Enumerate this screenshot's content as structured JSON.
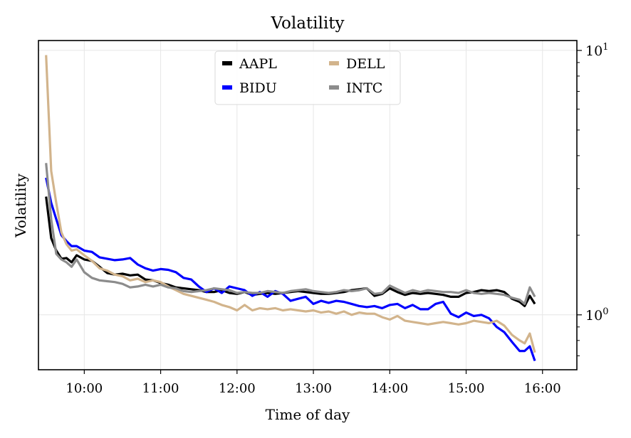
{
  "chart_data": {
    "type": "line",
    "title": "Volatility",
    "xlabel": "Time of day",
    "ylabel": "Volatility",
    "x_ticks": [
      "10:00",
      "11:00",
      "12:00",
      "13:00",
      "14:00",
      "15:00",
      "16:00"
    ],
    "y_ticks": [
      {
        "value": 10,
        "base": "10",
        "exp": "1"
      },
      {
        "value": 1,
        "base": "10",
        "exp": "0"
      }
    ],
    "y_scale": "log",
    "ylim": [
      0.62,
      10.9
    ],
    "xlim": [
      "09:24",
      "16:27"
    ],
    "grid": true,
    "legend_position": "top-center",
    "series": [
      {
        "name": "AAPL",
        "color": "#000000",
        "points": [
          [
            "09:30",
            2.8
          ],
          [
            "09:34",
            1.95
          ],
          [
            "09:38",
            1.75
          ],
          [
            "09:42",
            1.63
          ],
          [
            "09:46",
            1.64
          ],
          [
            "09:50",
            1.58
          ],
          [
            "09:54",
            1.68
          ],
          [
            "10:00",
            1.62
          ],
          [
            "10:06",
            1.6
          ],
          [
            "10:12",
            1.52
          ],
          [
            "10:18",
            1.44
          ],
          [
            "10:24",
            1.42
          ],
          [
            "10:30",
            1.43
          ],
          [
            "10:36",
            1.41
          ],
          [
            "10:42",
            1.42
          ],
          [
            "10:48",
            1.36
          ],
          [
            "10:54",
            1.35
          ],
          [
            "11:00",
            1.32
          ],
          [
            "11:06",
            1.3
          ],
          [
            "11:12",
            1.27
          ],
          [
            "11:18",
            1.26
          ],
          [
            "11:24",
            1.25
          ],
          [
            "11:30",
            1.24
          ],
          [
            "11:36",
            1.22
          ],
          [
            "11:42",
            1.22
          ],
          [
            "11:48",
            1.24
          ],
          [
            "11:54",
            1.21
          ],
          [
            "12:00",
            1.2
          ],
          [
            "12:06",
            1.22
          ],
          [
            "12:12",
            1.19
          ],
          [
            "12:18",
            1.2
          ],
          [
            "12:24",
            1.21
          ],
          [
            "12:30",
            1.2
          ],
          [
            "12:36",
            1.21
          ],
          [
            "12:42",
            1.22
          ],
          [
            "12:48",
            1.23
          ],
          [
            "12:54",
            1.22
          ],
          [
            "13:00",
            1.21
          ],
          [
            "13:06",
            1.2
          ],
          [
            "13:12",
            1.2
          ],
          [
            "13:18",
            1.21
          ],
          [
            "13:24",
            1.22
          ],
          [
            "13:30",
            1.24
          ],
          [
            "13:36",
            1.25
          ],
          [
            "13:42",
            1.26
          ],
          [
            "13:48",
            1.18
          ],
          [
            "13:54",
            1.2
          ],
          [
            "14:00",
            1.26
          ],
          [
            "14:06",
            1.22
          ],
          [
            "14:12",
            1.19
          ],
          [
            "14:18",
            1.21
          ],
          [
            "14:24",
            1.2
          ],
          [
            "14:30",
            1.21
          ],
          [
            "14:36",
            1.2
          ],
          [
            "14:42",
            1.19
          ],
          [
            "14:48",
            1.17
          ],
          [
            "14:54",
            1.17
          ],
          [
            "15:00",
            1.21
          ],
          [
            "15:06",
            1.22
          ],
          [
            "15:12",
            1.24
          ],
          [
            "15:18",
            1.23
          ],
          [
            "15:24",
            1.24
          ],
          [
            "15:30",
            1.22
          ],
          [
            "15:36",
            1.15
          ],
          [
            "15:42",
            1.12
          ],
          [
            "15:46",
            1.08
          ],
          [
            "15:50",
            1.18
          ],
          [
            "15:54",
            1.1
          ]
        ]
      },
      {
        "name": "BIDU",
        "color": "#0000ff",
        "points": [
          [
            "09:30",
            3.3
          ],
          [
            "09:34",
            2.65
          ],
          [
            "09:38",
            2.3
          ],
          [
            "09:42",
            2.0
          ],
          [
            "09:46",
            1.9
          ],
          [
            "09:50",
            1.82
          ],
          [
            "09:54",
            1.82
          ],
          [
            "10:00",
            1.75
          ],
          [
            "10:06",
            1.73
          ],
          [
            "10:12",
            1.65
          ],
          [
            "10:18",
            1.63
          ],
          [
            "10:24",
            1.61
          ],
          [
            "10:30",
            1.62
          ],
          [
            "10:36",
            1.64
          ],
          [
            "10:42",
            1.55
          ],
          [
            "10:48",
            1.5
          ],
          [
            "10:54",
            1.47
          ],
          [
            "11:00",
            1.49
          ],
          [
            "11:06",
            1.48
          ],
          [
            "11:12",
            1.45
          ],
          [
            "11:18",
            1.38
          ],
          [
            "11:24",
            1.36
          ],
          [
            "11:30",
            1.28
          ],
          [
            "11:36",
            1.22
          ],
          [
            "11:42",
            1.26
          ],
          [
            "11:48",
            1.21
          ],
          [
            "11:54",
            1.28
          ],
          [
            "12:00",
            1.26
          ],
          [
            "12:06",
            1.24
          ],
          [
            "12:12",
            1.18
          ],
          [
            "12:18",
            1.22
          ],
          [
            "12:24",
            1.17
          ],
          [
            "12:30",
            1.23
          ],
          [
            "12:36",
            1.2
          ],
          [
            "12:42",
            1.13
          ],
          [
            "12:48",
            1.15
          ],
          [
            "12:54",
            1.17
          ],
          [
            "13:00",
            1.1
          ],
          [
            "13:06",
            1.13
          ],
          [
            "13:12",
            1.11
          ],
          [
            "13:18",
            1.13
          ],
          [
            "13:24",
            1.12
          ],
          [
            "13:30",
            1.1
          ],
          [
            "13:36",
            1.08
          ],
          [
            "13:42",
            1.07
          ],
          [
            "13:48",
            1.08
          ],
          [
            "13:54",
            1.06
          ],
          [
            "14:00",
            1.09
          ],
          [
            "14:06",
            1.1
          ],
          [
            "14:12",
            1.06
          ],
          [
            "14:18",
            1.09
          ],
          [
            "14:24",
            1.05
          ],
          [
            "14:30",
            1.05
          ],
          [
            "14:36",
            1.1
          ],
          [
            "14:42",
            1.12
          ],
          [
            "14:48",
            1.01
          ],
          [
            "14:54",
            0.98
          ],
          [
            "15:00",
            1.02
          ],
          [
            "15:06",
            0.99
          ],
          [
            "15:12",
            1.0
          ],
          [
            "15:18",
            0.97
          ],
          [
            "15:24",
            0.9
          ],
          [
            "15:30",
            0.86
          ],
          [
            "15:36",
            0.79
          ],
          [
            "15:42",
            0.73
          ],
          [
            "15:46",
            0.73
          ],
          [
            "15:50",
            0.76
          ],
          [
            "15:54",
            0.67
          ]
        ]
      },
      {
        "name": "DELL",
        "color": "#d2b48c",
        "points": [
          [
            "09:30",
            9.6
          ],
          [
            "09:34",
            3.5
          ],
          [
            "09:38",
            2.65
          ],
          [
            "09:42",
            2.05
          ],
          [
            "09:46",
            1.85
          ],
          [
            "09:50",
            1.75
          ],
          [
            "09:54",
            1.77
          ],
          [
            "10:00",
            1.68
          ],
          [
            "10:06",
            1.6
          ],
          [
            "10:12",
            1.5
          ],
          [
            "10:18",
            1.47
          ],
          [
            "10:24",
            1.42
          ],
          [
            "10:30",
            1.4
          ],
          [
            "10:36",
            1.35
          ],
          [
            "10:42",
            1.37
          ],
          [
            "10:48",
            1.33
          ],
          [
            "10:54",
            1.35
          ],
          [
            "11:00",
            1.33
          ],
          [
            "11:06",
            1.28
          ],
          [
            "11:12",
            1.24
          ],
          [
            "11:18",
            1.2
          ],
          [
            "11:24",
            1.18
          ],
          [
            "11:30",
            1.16
          ],
          [
            "11:36",
            1.14
          ],
          [
            "11:42",
            1.12
          ],
          [
            "11:48",
            1.09
          ],
          [
            "11:54",
            1.07
          ],
          [
            "12:00",
            1.04
          ],
          [
            "12:06",
            1.09
          ],
          [
            "12:12",
            1.04
          ],
          [
            "12:18",
            1.06
          ],
          [
            "12:24",
            1.05
          ],
          [
            "12:30",
            1.06
          ],
          [
            "12:36",
            1.04
          ],
          [
            "12:42",
            1.05
          ],
          [
            "12:48",
            1.04
          ],
          [
            "12:54",
            1.03
          ],
          [
            "13:00",
            1.04
          ],
          [
            "13:06",
            1.02
          ],
          [
            "13:12",
            1.03
          ],
          [
            "13:18",
            1.01
          ],
          [
            "13:24",
            1.03
          ],
          [
            "13:30",
            1.0
          ],
          [
            "13:36",
            1.02
          ],
          [
            "13:42",
            1.01
          ],
          [
            "13:48",
            1.01
          ],
          [
            "13:54",
            0.98
          ],
          [
            "14:00",
            0.96
          ],
          [
            "14:06",
            0.99
          ],
          [
            "14:12",
            0.95
          ],
          [
            "14:18",
            0.94
          ],
          [
            "14:24",
            0.93
          ],
          [
            "14:30",
            0.92
          ],
          [
            "14:36",
            0.93
          ],
          [
            "14:42",
            0.94
          ],
          [
            "14:48",
            0.93
          ],
          [
            "14:54",
            0.92
          ],
          [
            "15:00",
            0.93
          ],
          [
            "15:06",
            0.95
          ],
          [
            "15:12",
            0.94
          ],
          [
            "15:18",
            0.93
          ],
          [
            "15:24",
            0.95
          ],
          [
            "15:30",
            0.91
          ],
          [
            "15:36",
            0.84
          ],
          [
            "15:42",
            0.8
          ],
          [
            "15:46",
            0.78
          ],
          [
            "15:50",
            0.85
          ],
          [
            "15:54",
            0.72
          ]
        ]
      },
      {
        "name": "INTC",
        "color": "#8c8c8c",
        "points": [
          [
            "09:30",
            3.75
          ],
          [
            "09:34",
            2.3
          ],
          [
            "09:38",
            1.7
          ],
          [
            "09:42",
            1.62
          ],
          [
            "09:46",
            1.58
          ],
          [
            "09:50",
            1.52
          ],
          [
            "09:54",
            1.62
          ],
          [
            "10:00",
            1.45
          ],
          [
            "10:06",
            1.38
          ],
          [
            "10:12",
            1.35
          ],
          [
            "10:18",
            1.34
          ],
          [
            "10:24",
            1.33
          ],
          [
            "10:30",
            1.31
          ],
          [
            "10:36",
            1.27
          ],
          [
            "10:42",
            1.28
          ],
          [
            "10:48",
            1.3
          ],
          [
            "10:54",
            1.28
          ],
          [
            "11:00",
            1.3
          ],
          [
            "11:06",
            1.27
          ],
          [
            "11:12",
            1.26
          ],
          [
            "11:18",
            1.23
          ],
          [
            "11:24",
            1.22
          ],
          [
            "11:30",
            1.23
          ],
          [
            "11:36",
            1.24
          ],
          [
            "11:42",
            1.26
          ],
          [
            "11:48",
            1.25
          ],
          [
            "11:54",
            1.24
          ],
          [
            "12:00",
            1.21
          ],
          [
            "12:06",
            1.22
          ],
          [
            "12:12",
            1.21
          ],
          [
            "12:18",
            1.21
          ],
          [
            "12:24",
            1.23
          ],
          [
            "12:30",
            1.22
          ],
          [
            "12:36",
            1.21
          ],
          [
            "12:42",
            1.23
          ],
          [
            "12:48",
            1.24
          ],
          [
            "12:54",
            1.25
          ],
          [
            "13:00",
            1.23
          ],
          [
            "13:06",
            1.22
          ],
          [
            "13:12",
            1.21
          ],
          [
            "13:18",
            1.22
          ],
          [
            "13:24",
            1.24
          ],
          [
            "13:30",
            1.23
          ],
          [
            "13:36",
            1.24
          ],
          [
            "13:42",
            1.26
          ],
          [
            "13:48",
            1.2
          ],
          [
            "13:54",
            1.21
          ],
          [
            "14:00",
            1.29
          ],
          [
            "14:06",
            1.25
          ],
          [
            "14:12",
            1.21
          ],
          [
            "14:18",
            1.24
          ],
          [
            "14:24",
            1.22
          ],
          [
            "14:30",
            1.24
          ],
          [
            "14:36",
            1.23
          ],
          [
            "14:42",
            1.22
          ],
          [
            "14:48",
            1.22
          ],
          [
            "14:54",
            1.21
          ],
          [
            "15:00",
            1.24
          ],
          [
            "15:06",
            1.21
          ],
          [
            "15:12",
            1.2
          ],
          [
            "15:18",
            1.21
          ],
          [
            "15:24",
            1.2
          ],
          [
            "15:30",
            1.19
          ],
          [
            "15:36",
            1.16
          ],
          [
            "15:42",
            1.14
          ],
          [
            "15:46",
            1.1
          ],
          [
            "15:50",
            1.27
          ],
          [
            "15:54",
            1.17
          ]
        ]
      }
    ]
  }
}
